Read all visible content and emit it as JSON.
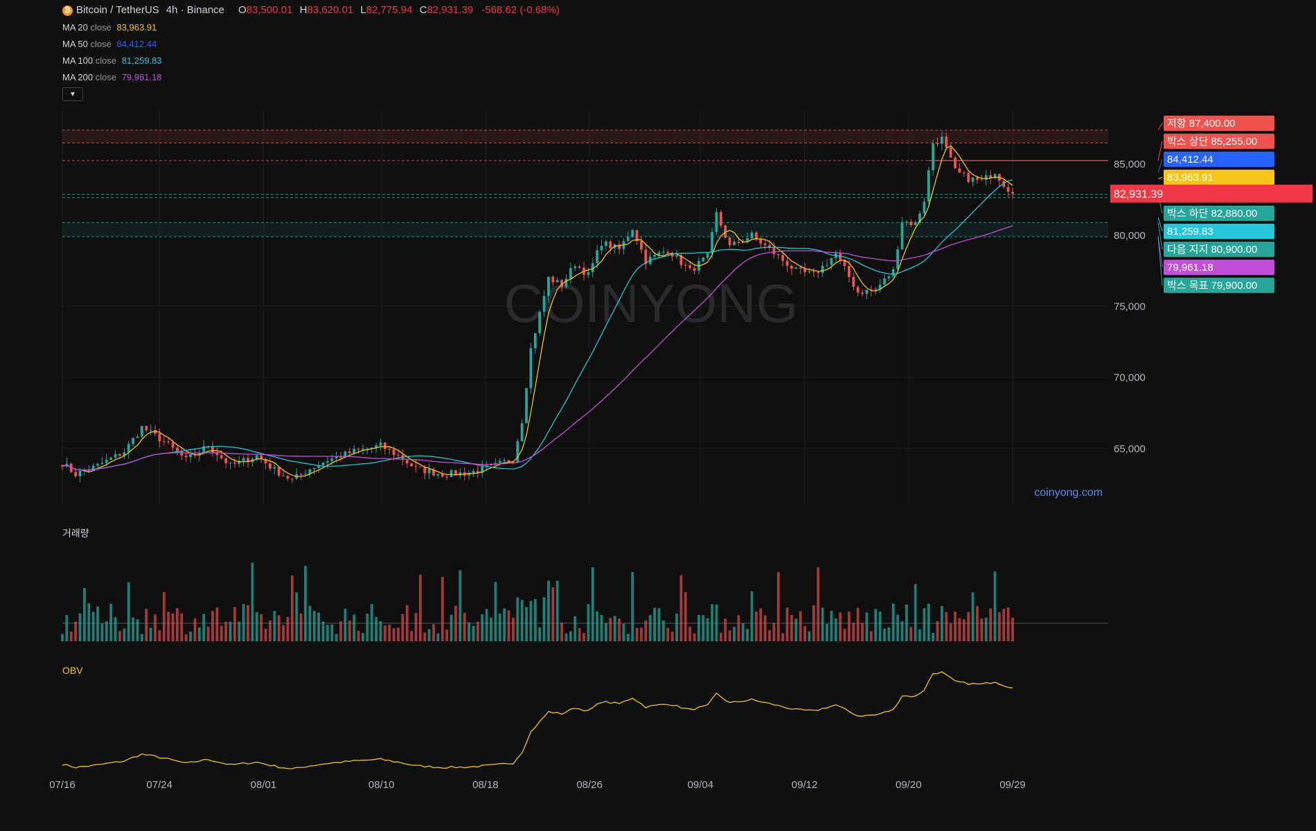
{
  "header": {
    "symbol": "Bitcoin / TetherUS",
    "interval": "4h · Binance",
    "ohlc": [
      {
        "k": "O",
        "v": "83,500.01"
      },
      {
        "k": "H",
        "v": "83,620.01"
      },
      {
        "k": "L",
        "v": "82,775.94"
      },
      {
        "k": "C",
        "v": "82,931.39"
      }
    ],
    "change": "-568.62 (-0.68%)",
    "moving_averages": [
      {
        "name": "MA 20",
        "src": "close",
        "value": "83,963.91",
        "color": "#f5c518"
      },
      {
        "name": "MA 50",
        "src": "close",
        "value": "84,412.44",
        "color": "#2962ff"
      },
      {
        "name": "MA 100",
        "src": "close",
        "value": "81,259.83",
        "color": "#26c6da"
      },
      {
        "name": "MA 200",
        "src": "close",
        "value": "79,961.18",
        "color": "#c24fd8"
      }
    ]
  },
  "colors": {
    "up": "#26a69a",
    "down": "#ef5350",
    "obv": "#f5c518",
    "resistance": "#ef5350",
    "support": "#26a69a",
    "price_tag": "#f23645"
  },
  "panes": {
    "volume_label": "거래량",
    "obv_label": "OBV"
  },
  "watermark": "COINYONG",
  "site": "coinyong.com",
  "chart_data": {
    "type": "candlestick",
    "interval": "4h",
    "x_ticks": [
      "07/16",
      "07/24",
      "08/01",
      "08/10",
      "08/18",
      "08/26",
      "09/04",
      "09/12",
      "09/20",
      "09/29"
    ],
    "y_ticks": [
      65000,
      70000,
      75000,
      80000,
      85000
    ],
    "ylim": [
      61000,
      89000
    ],
    "last_price": 82931.39,
    "price_path": [
      {
        "t": 0,
        "p": 64000
      },
      {
        "t": 3,
        "p": 63200
      },
      {
        "t": 8,
        "p": 63800
      },
      {
        "t": 14,
        "p": 64800
      },
      {
        "t": 18,
        "p": 66500
      },
      {
        "t": 23,
        "p": 65500
      },
      {
        "t": 28,
        "p": 64200
      },
      {
        "t": 33,
        "p": 65200
      },
      {
        "t": 38,
        "p": 63800
      },
      {
        "t": 44,
        "p": 64500
      },
      {
        "t": 48,
        "p": 63500
      },
      {
        "t": 52,
        "p": 62800
      },
      {
        "t": 56,
        "p": 63600
      },
      {
        "t": 60,
        "p": 64200
      },
      {
        "t": 66,
        "p": 64800
      },
      {
        "t": 72,
        "p": 65200
      },
      {
        "t": 76,
        "p": 64500
      },
      {
        "t": 80,
        "p": 63600
      },
      {
        "t": 86,
        "p": 63200
      },
      {
        "t": 92,
        "p": 63300
      },
      {
        "t": 98,
        "p": 63800
      },
      {
        "t": 102,
        "p": 64300
      },
      {
        "t": 104,
        "p": 67000
      },
      {
        "t": 106,
        "p": 72000
      },
      {
        "t": 110,
        "p": 77000
      },
      {
        "t": 113,
        "p": 76500
      },
      {
        "t": 116,
        "p": 78000
      },
      {
        "t": 119,
        "p": 77200
      },
      {
        "t": 122,
        "p": 79500
      },
      {
        "t": 126,
        "p": 79000
      },
      {
        "t": 129,
        "p": 80500
      },
      {
        "t": 132,
        "p": 78200
      },
      {
        "t": 137,
        "p": 79000
      },
      {
        "t": 142,
        "p": 77500
      },
      {
        "t": 146,
        "p": 78500
      },
      {
        "t": 148,
        "p": 81500
      },
      {
        "t": 151,
        "p": 79200
      },
      {
        "t": 156,
        "p": 80000
      },
      {
        "t": 162,
        "p": 78500
      },
      {
        "t": 166,
        "p": 77500
      },
      {
        "t": 170,
        "p": 77200
      },
      {
        "t": 175,
        "p": 78700
      },
      {
        "t": 180,
        "p": 76000
      },
      {
        "t": 184,
        "p": 76200
      },
      {
        "t": 188,
        "p": 77500
      },
      {
        "t": 190,
        "p": 81000
      },
      {
        "t": 193,
        "p": 80800
      },
      {
        "t": 195,
        "p": 82500
      },
      {
        "t": 197,
        "p": 86500
      },
      {
        "t": 199,
        "p": 86800
      },
      {
        "t": 202,
        "p": 84500
      },
      {
        "t": 205,
        "p": 84000
      },
      {
        "t": 208,
        "p": 83800
      },
      {
        "t": 211,
        "p": 84500
      },
      {
        "t": 213,
        "p": 83600
      },
      {
        "t": 215,
        "p": 82931
      }
    ],
    "levels": [
      {
        "label": "저항 87,400.00",
        "price": 87400,
        "kind": "resistance"
      },
      {
        "label": "박스 상단 85,255.00",
        "price": 85255,
        "kind": "resistance"
      },
      {
        "label": "박스 하단 82,880.00",
        "price": 82880,
        "kind": "support"
      },
      {
        "label": "다음 지지 80,900.00",
        "price": 80900,
        "kind": "support"
      },
      {
        "label": "박스 목표 79,900.00",
        "price": 79900,
        "kind": "support"
      }
    ],
    "ma_tags": [
      {
        "label": "84,412.44",
        "price": 84412.44,
        "color": "#2962ff"
      },
      {
        "label": "83,963.91",
        "price": 83963.91,
        "color": "#f5c518"
      },
      {
        "label": "81,259.83",
        "price": 81259.83,
        "color": "#26c6da"
      },
      {
        "label": "79,961.18",
        "price": 79961.18,
        "color": "#c24fd8"
      }
    ],
    "price_label": "82,931.39"
  }
}
